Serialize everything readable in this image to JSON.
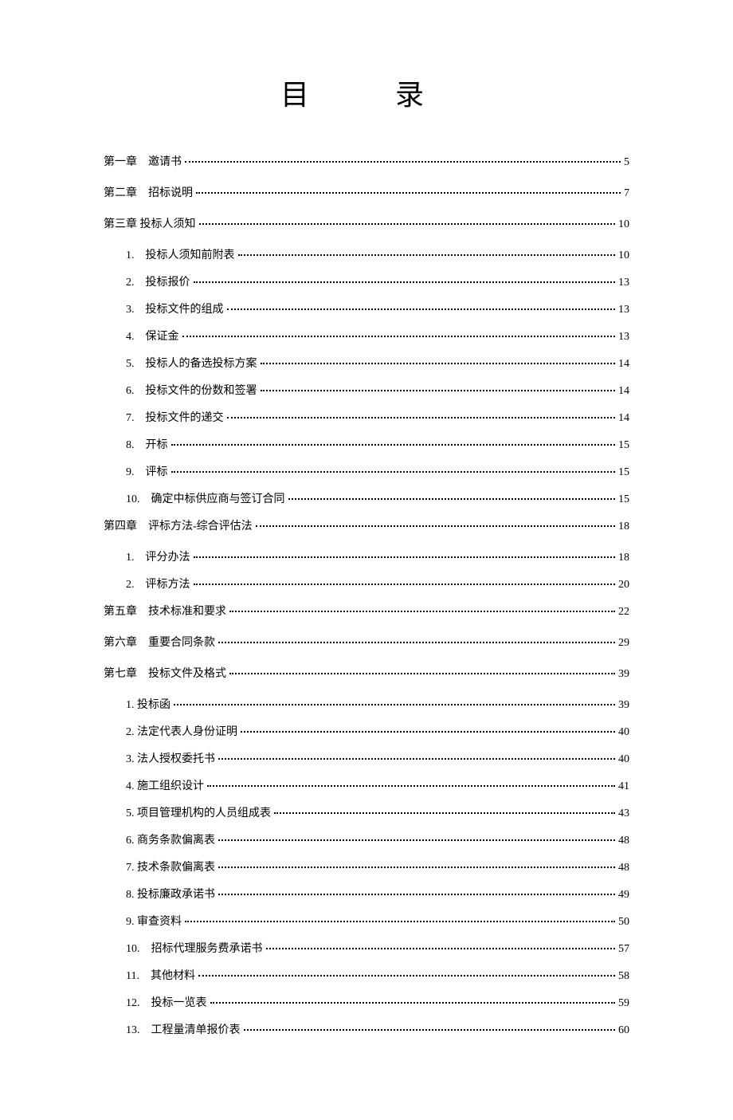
{
  "title": "目　录",
  "toc": {
    "chapters": [
      {
        "label": "第一章　邀请书",
        "page": "5",
        "subitems": []
      },
      {
        "label": "第二章　招标说明",
        "page": "7",
        "subitems": []
      },
      {
        "label": "第三章 投标人须知",
        "page": "10",
        "subitems": [
          {
            "label": "1.　投标人须知前附表",
            "page": "10"
          },
          {
            "label": "2.　投标报价",
            "page": "13"
          },
          {
            "label": "3.　投标文件的组成",
            "page": "13"
          },
          {
            "label": "4.　保证金",
            "page": "13"
          },
          {
            "label": "5.　投标人的备选投标方案",
            "page": "14"
          },
          {
            "label": "6.　投标文件的份数和签署",
            "page": "14"
          },
          {
            "label": "7.　投标文件的递交",
            "page": "14"
          },
          {
            "label": "8.　开标",
            "page": "15"
          },
          {
            "label": "9.　评标",
            "page": "15"
          },
          {
            "label": "10.　确定中标供应商与签订合同",
            "page": "15"
          }
        ]
      },
      {
        "label": "第四章　评标方法-综合评估法",
        "page": "18",
        "subitems": [
          {
            "label": "1.　评分办法",
            "page": "18"
          },
          {
            "label": "2.　评标方法",
            "page": "20"
          }
        ]
      },
      {
        "label": "第五章　技术标准和要求",
        "page": "22",
        "subitems": []
      },
      {
        "label": "第六章　重要合同条款",
        "page": "29",
        "subitems": []
      },
      {
        "label": "第七章　投标文件及格式",
        "page": "39",
        "subitems": [
          {
            "label": "1. 投标函",
            "page": "39"
          },
          {
            "label": "2. 法定代表人身份证明",
            "page": "40"
          },
          {
            "label": "3. 法人授权委托书",
            "page": "40"
          },
          {
            "label": "4. 施工组织设计",
            "page": "41"
          },
          {
            "label": "5. 项目管理机构的人员组成表",
            "page": "43"
          },
          {
            "label": "6. 商务条款偏离表",
            "page": "48"
          },
          {
            "label": "7. 技术条款偏离表",
            "page": "48"
          },
          {
            "label": "8. 投标廉政承诺书",
            "page": "49"
          },
          {
            "label": "9. 审查资料",
            "page": "50"
          },
          {
            "label": "10.　招标代理服务费承诺书",
            "page": "57"
          },
          {
            "label": "11.　其他材料",
            "page": "58"
          },
          {
            "label": "12.　投标一览表",
            "page": "59"
          },
          {
            "label": "13.　工程量清单报价表",
            "page": "60"
          }
        ]
      }
    ]
  },
  "colors": {
    "text": "#000000",
    "background": "#ffffff"
  },
  "typography": {
    "title_fontsize": 36,
    "body_fontsize": 14,
    "font_family": "SimSun"
  }
}
